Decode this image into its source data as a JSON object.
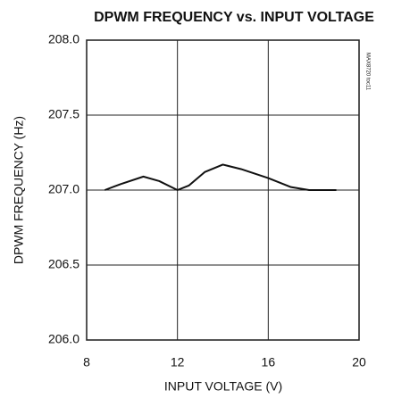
{
  "chart_data": {
    "type": "line",
    "title": "DPWM FREQUENCY vs. INPUT VOLTAGE",
    "x_label": "INPUT VOLTAGE (V)",
    "y_label": "DPWM FREQUENCY (Hz)",
    "annotation": "MAX8720 toc11",
    "x": [
      8.8,
      9.5,
      10.5,
      11.2,
      12,
      12.5,
      13.2,
      14,
      14.8,
      16,
      17,
      17.8,
      19
    ],
    "series": [
      {
        "name": "DPWM frequency",
        "color": "#111111",
        "values": [
          207.0,
          207.04,
          207.09,
          207.06,
          207.0,
          207.03,
          207.12,
          207.17,
          207.14,
          207.08,
          207.02,
          207.0,
          207.0
        ]
      }
    ],
    "xlim": [
      8,
      20
    ],
    "xticks": [
      8,
      12,
      16,
      20
    ],
    "ylim": [
      206,
      208
    ],
    "yticks": [
      {
        "value": 206,
        "label": "206.0"
      },
      206.5,
      {
        "value": 207,
        "label": "207.0"
      },
      207.5,
      {
        "value": 208,
        "label": "208.0"
      }
    ],
    "grid": true
  }
}
